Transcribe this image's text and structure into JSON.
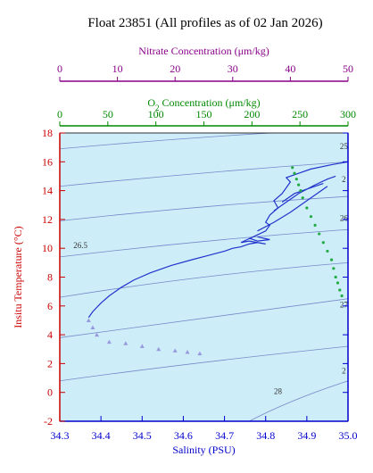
{
  "chart_data": {
    "type": "scatter",
    "title": "Float 23851  (All profiles as of 02 Jan 2026)",
    "axes": {
      "salinity": {
        "label": "Salinity (PSU)",
        "range": [
          34.3,
          35.0
        ],
        "ticks": [
          "34.3",
          "34.4",
          "34.5",
          "34.6",
          "34.7",
          "34.8",
          "34.9",
          "35.0"
        ],
        "color": "#0000cc"
      },
      "temperature": {
        "label": "Insitu Temperature (°C)",
        "range": [
          -2,
          18
        ],
        "ticks": [
          "-2",
          "0",
          "2",
          "4",
          "6",
          "8",
          "10",
          "12",
          "14",
          "16",
          "18"
        ],
        "color": "#cc0000"
      },
      "oxygen": {
        "label_prefix": "O",
        "label_sub": "2",
        "label_suffix": " Concentration (μm/kg)",
        "range": [
          0,
          300
        ],
        "ticks": [
          "0",
          "50",
          "100",
          "150",
          "200",
          "250",
          "300"
        ],
        "color": "#008800"
      },
      "nitrate": {
        "label": "Nitrate Concentration (μm/kg)",
        "range": [
          0,
          50
        ],
        "ticks": [
          "0",
          "10",
          "20",
          "30",
          "40",
          "50"
        ],
        "color": "#880088"
      }
    },
    "density_contours": {
      "color": "#7788cc",
      "labels": [
        {
          "text": "26.5",
          "s": 34.35,
          "t": 10.0
        },
        {
          "text": "25",
          "s": 34.99,
          "t": 16.9
        },
        {
          "text": "2",
          "s": 34.99,
          "t": 14.6
        },
        {
          "text": "26",
          "s": 34.99,
          "t": 11.9
        },
        {
          "text": "27",
          "s": 34.99,
          "t": 5.9
        },
        {
          "text": "2",
          "s": 34.99,
          "t": 1.3
        },
        {
          "text": "28",
          "s": 34.83,
          "t": -0.1
        }
      ]
    },
    "series": [
      {
        "kind": "temperature-salinity profiles",
        "color": "#2233cc",
        "points": [
          [
            34.37,
            5.2
          ],
          [
            34.38,
            5.6
          ],
          [
            34.4,
            6.2
          ],
          [
            34.42,
            6.7
          ],
          [
            34.45,
            7.3
          ],
          [
            34.48,
            7.8
          ],
          [
            34.52,
            8.3
          ],
          [
            34.57,
            8.8
          ],
          [
            34.62,
            9.2
          ],
          [
            34.66,
            9.5
          ],
          [
            34.7,
            9.8
          ],
          [
            34.72,
            10.0
          ],
          [
            34.74,
            10.1
          ],
          [
            34.76,
            10.3
          ],
          [
            34.78,
            10.4
          ],
          [
            34.8,
            10.3
          ],
          [
            34.76,
            10.5
          ],
          [
            34.74,
            10.4
          ],
          [
            34.77,
            10.8
          ],
          [
            34.8,
            11.2
          ],
          [
            34.81,
            11.6
          ],
          [
            34.8,
            11.8
          ],
          [
            34.81,
            12.3
          ],
          [
            34.83,
            12.8
          ],
          [
            34.82,
            13.3
          ],
          [
            34.84,
            13.8
          ],
          [
            34.85,
            14.2
          ],
          [
            34.86,
            14.6
          ],
          [
            34.85,
            14.9
          ],
          [
            34.88,
            15.2
          ],
          [
            34.91,
            15.5
          ],
          [
            34.96,
            15.8
          ],
          [
            35.0,
            16.0
          ]
        ],
        "branches": [
          [
            [
              34.78,
              11.2
            ],
            [
              34.82,
              11.8
            ],
            [
              34.86,
              12.5
            ],
            [
              34.9,
              13.3
            ],
            [
              34.93,
              13.9
            ],
            [
              34.95,
              14.3
            ]
          ],
          [
            [
              34.82,
              12.6
            ],
            [
              34.85,
              13.2
            ],
            [
              34.88,
              13.8
            ],
            [
              34.92,
              14.4
            ],
            [
              34.95,
              14.8
            ],
            [
              34.97,
              15.0
            ]
          ],
          [
            [
              34.84,
              13.2
            ],
            [
              34.87,
              13.8
            ],
            [
              34.91,
              14.2
            ],
            [
              34.94,
              14.5
            ]
          ],
          [
            [
              34.76,
              10.7
            ],
            [
              34.78,
              10.5
            ],
            [
              34.81,
              10.6
            ],
            [
              34.78,
              10.8
            ]
          ]
        ]
      },
      {
        "kind": "nitrate",
        "color": "#9999dd",
        "marker": "triangle",
        "points": [
          [
            34.37,
            5.0
          ],
          [
            34.38,
            4.5
          ],
          [
            34.39,
            4.0
          ],
          [
            34.42,
            3.5
          ],
          [
            34.46,
            3.4
          ],
          [
            34.5,
            3.2
          ],
          [
            34.54,
            3.0
          ],
          [
            34.58,
            2.9
          ],
          [
            34.61,
            2.8
          ],
          [
            34.64,
            2.7
          ]
        ]
      },
      {
        "kind": "oxygen",
        "color": "#22aa44",
        "points": [
          [
            34.865,
            15.6
          ],
          [
            34.87,
            15.2
          ],
          [
            34.875,
            14.8
          ],
          [
            34.88,
            14.4
          ],
          [
            34.885,
            14.0
          ],
          [
            34.89,
            13.5
          ],
          [
            34.9,
            12.8
          ],
          [
            34.91,
            12.2
          ],
          [
            34.92,
            11.6
          ],
          [
            34.93,
            11.0
          ],
          [
            34.94,
            10.4
          ],
          [
            34.95,
            9.8
          ],
          [
            34.96,
            9.2
          ],
          [
            34.965,
            8.6
          ],
          [
            34.97,
            8.0
          ],
          [
            34.975,
            7.6
          ],
          [
            34.98,
            7.1
          ],
          [
            34.985,
            6.7
          ]
        ]
      }
    ]
  }
}
